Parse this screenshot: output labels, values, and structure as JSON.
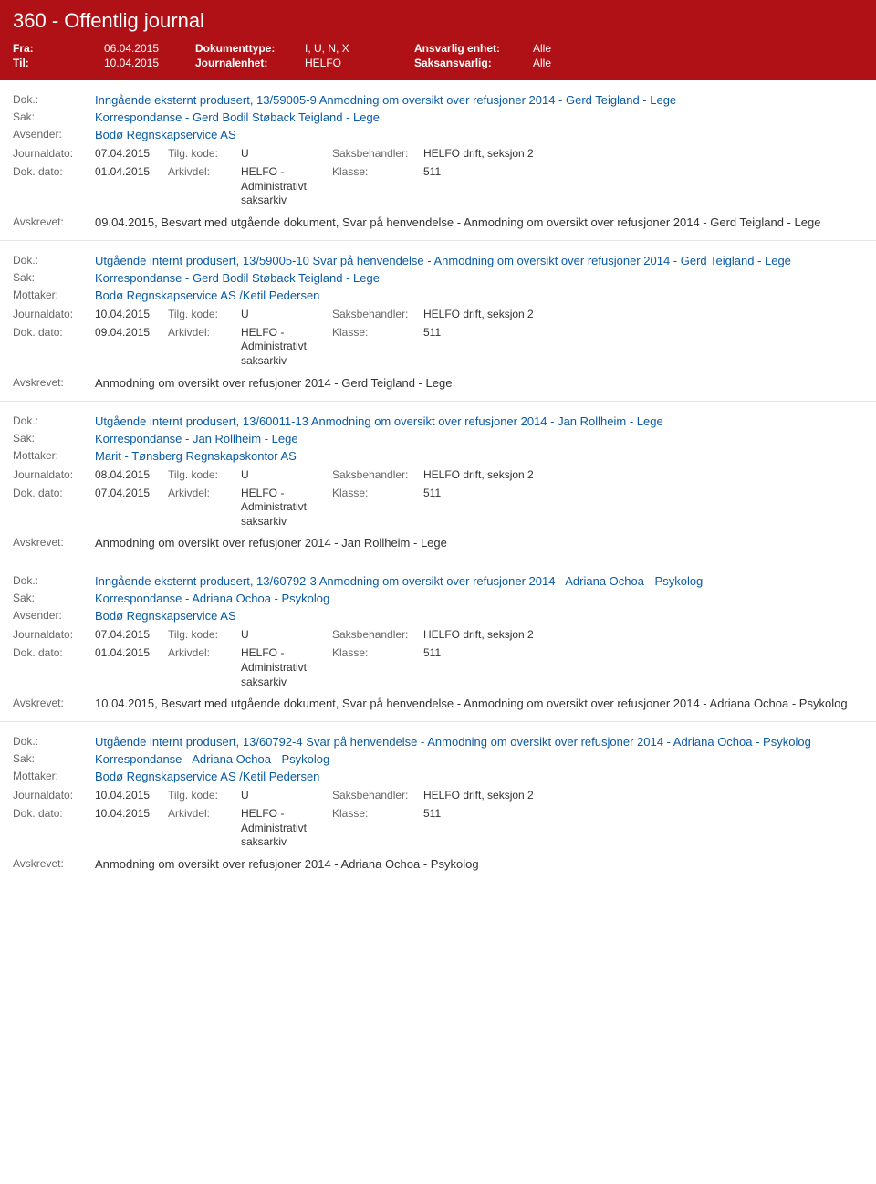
{
  "header": {
    "title": "360 - Offentlig journal",
    "fra_label": "Fra:",
    "fra_value": "06.04.2015",
    "til_label": "Til:",
    "til_value": "10.04.2015",
    "doktype_label": "Dokumenttype:",
    "doktype_value": "I, U, N, X",
    "jenhet_label": "Journalenhet:",
    "jenhet_value": "HELFO",
    "ansvarlig_label": "Ansvarlig enhet:",
    "ansvarlig_value": "Alle",
    "saksansv_label": "Saksansvarlig:",
    "saksansv_value": "Alle"
  },
  "labels": {
    "dok": "Dok.:",
    "sak": "Sak:",
    "avsender": "Avsender:",
    "mottaker": "Mottaker:",
    "journaldato": "Journaldato:",
    "dokdato": "Dok. dato:",
    "tilgkode": "Tilg. kode:",
    "arkivdel": "Arkivdel:",
    "saksbehandler": "Saksbehandler:",
    "klasse": "Klasse:",
    "avskrevet": "Avskrevet:"
  },
  "common": {
    "arkivdel_value": "HELFO - Administrativt saksarkiv",
    "tilgkode_value": "U",
    "saksbehandler_value": "HELFO drift, seksjon 2",
    "klasse_value": "511"
  },
  "entries": [
    {
      "dok": "Inngående eksternt produsert, 13/59005-9 Anmodning om oversikt over refusjoner 2014 - Gerd Teigland - Lege",
      "sak": "Korrespondanse - Gerd Bodil Støback Teigland - Lege",
      "party_label": "Avsender:",
      "party": "Bodø Regnskapservice AS",
      "journaldato": "07.04.2015",
      "dokdato": "01.04.2015",
      "avskrevet": "09.04.2015, Besvart med utgående dokument, Svar på henvendelse - Anmodning om oversikt over refusjoner 2014 - Gerd Teigland - Lege"
    },
    {
      "dok": "Utgående internt produsert, 13/59005-10 Svar på henvendelse - Anmodning om oversikt over refusjoner 2014 - Gerd Teigland - Lege",
      "sak": "Korrespondanse - Gerd Bodil Støback Teigland - Lege",
      "party_label": "Mottaker:",
      "party": "Bodø Regnskapservice AS /Ketil Pedersen",
      "journaldato": "10.04.2015",
      "dokdato": "09.04.2015",
      "avskrevet": "Anmodning om oversikt over refusjoner 2014 - Gerd Teigland - Lege"
    },
    {
      "dok": "Utgående internt produsert, 13/60011-13 Anmodning om oversikt over refusjoner 2014 - Jan Rollheim - Lege",
      "sak": "Korrespondanse - Jan Rollheim - Lege",
      "party_label": "Mottaker:",
      "party": "Marit - Tønsberg Regnskapskontor AS",
      "journaldato": "08.04.2015",
      "dokdato": "07.04.2015",
      "avskrevet": "Anmodning om oversikt over refusjoner 2014 - Jan Rollheim - Lege"
    },
    {
      "dok": "Inngående eksternt produsert, 13/60792-3 Anmodning om oversikt over refusjoner 2014 - Adriana Ochoa - Psykolog",
      "sak": "Korrespondanse - Adriana Ochoa - Psykolog",
      "party_label": "Avsender:",
      "party": "Bodø Regnskapservice AS",
      "journaldato": "07.04.2015",
      "dokdato": "01.04.2015",
      "avskrevet": "10.04.2015, Besvart med utgående dokument, Svar på henvendelse - Anmodning om oversikt over refusjoner 2014 - Adriana Ochoa - Psykolog"
    },
    {
      "dok": "Utgående internt produsert, 13/60792-4 Svar på henvendelse - Anmodning om oversikt over refusjoner 2014 - Adriana Ochoa - Psykolog",
      "sak": "Korrespondanse - Adriana Ochoa - Psykolog",
      "party_label": "Mottaker:",
      "party": "Bodø Regnskapservice AS /Ketil Pedersen",
      "journaldato": "10.04.2015",
      "dokdato": "10.04.2015",
      "avskrevet": "Anmodning om oversikt over refusjoner 2014 - Adriana Ochoa - Psykolog"
    }
  ]
}
